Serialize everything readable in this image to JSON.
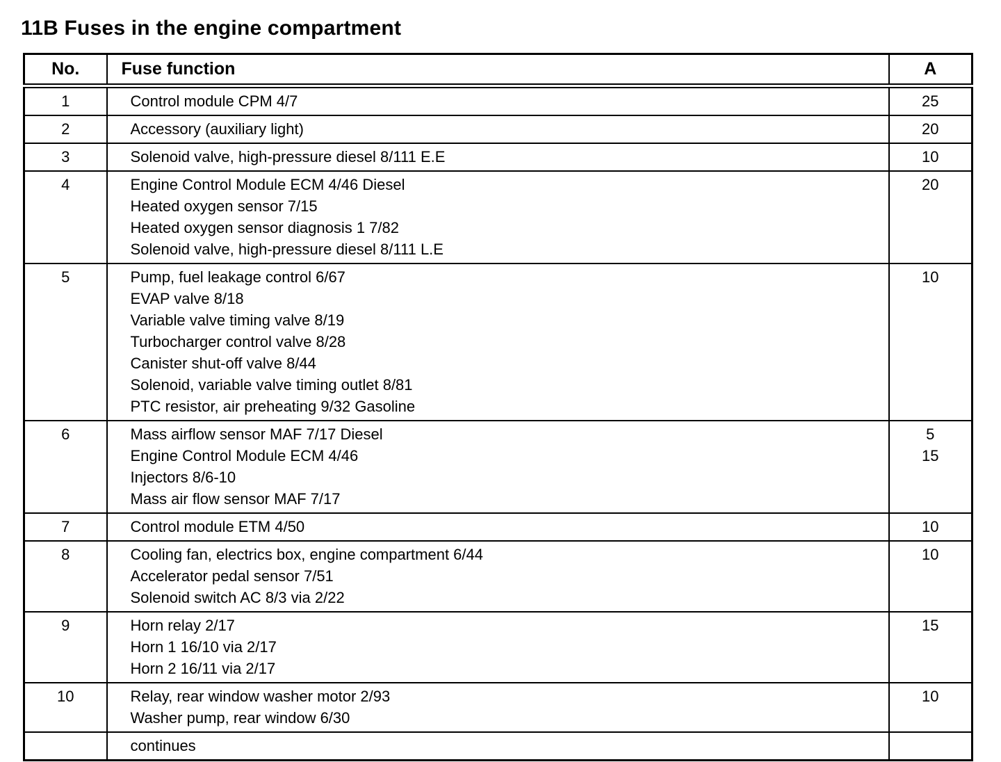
{
  "page_title": "11B Fuses in the engine compartment",
  "table": {
    "headers": {
      "no": "No.",
      "function": "Fuse function",
      "amps": "A"
    },
    "rows": [
      {
        "no": "1",
        "functions": [
          "Control module CPM 4/7"
        ],
        "amps": [
          "25"
        ]
      },
      {
        "no": "2",
        "functions": [
          "Accessory (auxiliary light)"
        ],
        "amps": [
          "20"
        ]
      },
      {
        "no": "3",
        "functions": [
          "Solenoid valve, high-pressure diesel 8/111 E.E"
        ],
        "amps": [
          "10"
        ]
      },
      {
        "no": "4",
        "functions": [
          "Engine Control Module ECM 4/46 Diesel",
          "Heated oxygen sensor 7/15",
          "Heated oxygen sensor diagnosis 1 7/82",
          "Solenoid valve, high-pressure diesel 8/111 L.E"
        ],
        "amps": [
          "20"
        ]
      },
      {
        "no": "5",
        "functions": [
          "Pump, fuel leakage control 6/67",
          "EVAP valve 8/18",
          "Variable valve timing valve 8/19",
          "Turbocharger control valve 8/28",
          "Canister shut-off valve 8/44",
          "Solenoid, variable valve timing outlet 8/81",
          "PTC resistor, air preheating 9/32 Gasoline"
        ],
        "amps": [
          "10"
        ]
      },
      {
        "no": "6",
        "functions": [
          "Mass airflow sensor MAF 7/17 Diesel",
          "Engine Control Module ECM 4/46",
          "Injectors 8/6-10",
          "Mass air flow sensor MAF 7/17"
        ],
        "amps": [
          "5",
          "15"
        ]
      },
      {
        "no": "7",
        "functions": [
          "Control module ETM 4/50"
        ],
        "amps": [
          "10"
        ]
      },
      {
        "no": "8",
        "functions": [
          "Cooling fan, electrics box, engine compartment 6/44",
          "Accelerator pedal sensor 7/51",
          "Solenoid switch AC 8/3 via 2/22"
        ],
        "amps": [
          "10"
        ]
      },
      {
        "no": "9",
        "functions": [
          "Horn relay 2/17",
          "Horn 1 16/10 via 2/17",
          "Horn 2 16/11 via 2/17"
        ],
        "amps": [
          "15"
        ]
      },
      {
        "no": "10",
        "functions": [
          "Relay, rear window washer motor 2/93",
          "Washer pump, rear window 6/30"
        ],
        "amps": [
          "10"
        ]
      },
      {
        "no": "",
        "functions": [
          "continues"
        ],
        "amps": []
      }
    ]
  }
}
